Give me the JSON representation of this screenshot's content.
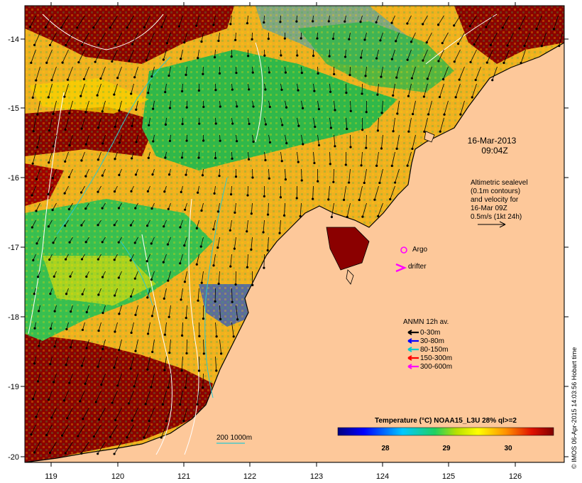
{
  "map": {
    "datetime_line1": "16-Mar-2013",
    "datetime_line2": "09:04Z",
    "altimetry": {
      "line1": "Altimetric sealevel",
      "line2": "(0.1m contours)",
      "line3": "and velocity for",
      "line4": "16-Mar 09Z",
      "line5": "0.5m/s (1kt 24h)"
    },
    "argo_label": "Argo",
    "drifter_label": "drifter",
    "anmn": {
      "title": "ANMN 12h av.",
      "items": [
        {
          "label": "0-30m",
          "color": "#000000"
        },
        {
          "label": "30-80m",
          "color": "#0000ff"
        },
        {
          "label": "80-150m",
          "color": "#00cccc"
        },
        {
          "label": "150-300m",
          "color": "#ff0000"
        },
        {
          "label": "300-600m",
          "color": "#ff00ff"
        }
      ]
    },
    "isobath_label": "200 1000m",
    "colorbar": {
      "title": "Temperature (°C) NOAA15_L3U 28% ql>=2",
      "ticks": [
        "28",
        "29",
        "30"
      ]
    },
    "credit": "© IMOS 06-Apr-2015 14:03:56 Hobart time",
    "x_ticks": [
      "119",
      "120",
      "121",
      "122",
      "123",
      "124",
      "125",
      "126"
    ],
    "y_ticks": [
      "-14",
      "-15",
      "-16",
      "-17",
      "-18",
      "-19",
      "-20"
    ],
    "colors": {
      "land": "#fdc89a",
      "warm": "#8b0000",
      "mid": "#f5a000",
      "cool": "#2fb84a"
    }
  }
}
